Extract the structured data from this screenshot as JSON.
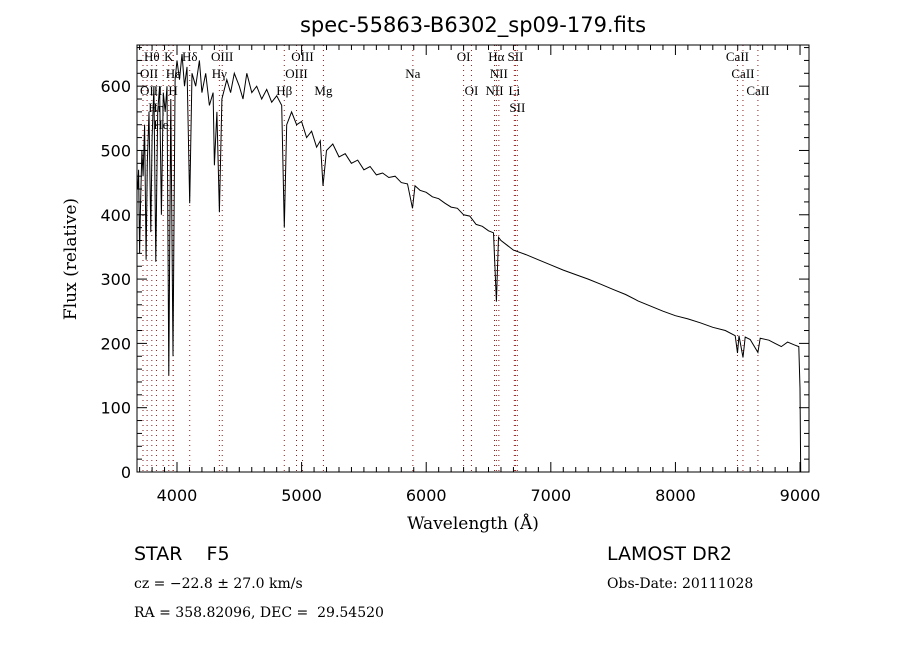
{
  "chart_data": {
    "type": "line",
    "title": "spec-55863-B6302_sp09-179.fits",
    "xlabel": "Wavelength (Å)",
    "ylabel": "Flux (relative)",
    "xlim": [
      3679,
      9072
    ],
    "ylim": [
      0,
      664
    ],
    "xticks": [
      4000,
      5000,
      6000,
      7000,
      8000,
      9000
    ],
    "yticks": [
      0,
      100,
      200,
      300,
      400,
      500,
      600
    ],
    "grid": false,
    "colors": {
      "spectrum": "#000000",
      "line_marker": "#8b1a1a",
      "axes": "#000000"
    },
    "series": [
      {
        "name": "spectrum",
        "points": [
          [
            3685,
            440
          ],
          [
            3692,
            470
          ],
          [
            3700,
            340
          ],
          [
            3708,
            420
          ],
          [
            3718,
            500
          ],
          [
            3728,
            460
          ],
          [
            3740,
            540
          ],
          [
            3752,
            330
          ],
          [
            3762,
            480
          ],
          [
            3775,
            560
          ],
          [
            3790,
            373
          ],
          [
            3800,
            520
          ],
          [
            3815,
            600
          ],
          [
            3830,
            327
          ],
          [
            3845,
            560
          ],
          [
            3860,
            600
          ],
          [
            3875,
            400
          ],
          [
            3890,
            590
          ],
          [
            3905,
            560
          ],
          [
            3920,
            600
          ],
          [
            3934,
            150
          ],
          [
            3950,
            580
          ],
          [
            3968,
            180
          ],
          [
            3985,
            610
          ],
          [
            4000,
            640
          ],
          [
            4020,
            610
          ],
          [
            4040,
            650
          ],
          [
            4060,
            600
          ],
          [
            4080,
            630
          ],
          [
            4102,
            418
          ],
          [
            4120,
            620
          ],
          [
            4150,
            600
          ],
          [
            4180,
            640
          ],
          [
            4200,
            590
          ],
          [
            4230,
            620
          ],
          [
            4260,
            570
          ],
          [
            4290,
            590
          ],
          [
            4300,
            477
          ],
          [
            4320,
            560
          ],
          [
            4340,
            404
          ],
          [
            4360,
            580
          ],
          [
            4400,
            610
          ],
          [
            4430,
            590
          ],
          [
            4460,
            620
          ],
          [
            4500,
            600
          ],
          [
            4530,
            580
          ],
          [
            4560,
            620
          ],
          [
            4600,
            590
          ],
          [
            4640,
            600
          ],
          [
            4680,
            580
          ],
          [
            4720,
            595
          ],
          [
            4760,
            575
          ],
          [
            4800,
            585
          ],
          [
            4840,
            570
          ],
          [
            4861,
            380
          ],
          [
            4880,
            540
          ],
          [
            4920,
            560
          ],
          [
            4960,
            540
          ],
          [
            5000,
            545
          ],
          [
            5040,
            520
          ],
          [
            5080,
            530
          ],
          [
            5120,
            505
          ],
          [
            5150,
            515
          ],
          [
            5172,
            445
          ],
          [
            5200,
            500
          ],
          [
            5250,
            510
          ],
          [
            5300,
            490
          ],
          [
            5350,
            495
          ],
          [
            5400,
            480
          ],
          [
            5450,
            485
          ],
          [
            5500,
            470
          ],
          [
            5550,
            475
          ],
          [
            5600,
            462
          ],
          [
            5650,
            465
          ],
          [
            5700,
            458
          ],
          [
            5750,
            460
          ],
          [
            5800,
            450
          ],
          [
            5850,
            448
          ],
          [
            5890,
            410
          ],
          [
            5910,
            445
          ],
          [
            5950,
            438
          ],
          [
            6000,
            435
          ],
          [
            6050,
            428
          ],
          [
            6100,
            425
          ],
          [
            6150,
            418
          ],
          [
            6200,
            412
          ],
          [
            6250,
            410
          ],
          [
            6300,
            400
          ],
          [
            6350,
            398
          ],
          [
            6400,
            385
          ],
          [
            6450,
            382
          ],
          [
            6500,
            375
          ],
          [
            6540,
            372
          ],
          [
            6563,
            265
          ],
          [
            6580,
            365
          ],
          [
            6600,
            360
          ],
          [
            6700,
            345
          ],
          [
            6800,
            338
          ],
          [
            6900,
            330
          ],
          [
            7000,
            322
          ],
          [
            7100,
            314
          ],
          [
            7200,
            307
          ],
          [
            7300,
            300
          ],
          [
            7400,
            292
          ],
          [
            7500,
            284
          ],
          [
            7600,
            276
          ],
          [
            7700,
            266
          ],
          [
            7800,
            258
          ],
          [
            7900,
            250
          ],
          [
            8000,
            243
          ],
          [
            8100,
            238
          ],
          [
            8200,
            232
          ],
          [
            8300,
            225
          ],
          [
            8400,
            220
          ],
          [
            8480,
            212
          ],
          [
            8498,
            185
          ],
          [
            8510,
            212
          ],
          [
            8542,
            178
          ],
          [
            8560,
            210
          ],
          [
            8600,
            206
          ],
          [
            8662,
            186
          ],
          [
            8680,
            208
          ],
          [
            8750,
            205
          ],
          [
            8800,
            200
          ],
          [
            8850,
            195
          ],
          [
            8900,
            202
          ],
          [
            8950,
            198
          ],
          [
            8990,
            195
          ],
          [
            9000,
            130
          ],
          [
            9005,
            0
          ]
        ]
      }
    ],
    "line_markers": [
      {
        "label": "OII",
        "wl": 3727,
        "row": 2
      },
      {
        "label": "OIII",
        "wl": 3760,
        "row": 3
      },
      {
        "label": "Hθ",
        "wl": 3798,
        "row": 1
      },
      {
        "label": "Hη",
        "wl": 3835,
        "row": 3
      },
      {
        "label": "HeI",
        "wl": 3889,
        "row": 2
      },
      {
        "label": "K",
        "wl": 3934,
        "row": 1
      },
      {
        "label": "H",
        "wl": 3969,
        "row": 3
      },
      {
        "label": "Hε",
        "wl": 3970,
        "row": 2
      },
      {
        "label": "Hδ",
        "wl": 4102,
        "row": 1
      },
      {
        "label": "Hγ",
        "wl": 4340,
        "row": 2
      },
      {
        "label": "OIII",
        "wl": 4363,
        "row": 1
      },
      {
        "label": "Hβ",
        "wl": 4861,
        "row": 3
      },
      {
        "label": "OIII",
        "wl": 4959,
        "row": 2
      },
      {
        "label": "OIII",
        "wl": 5007,
        "row": 1
      },
      {
        "label": "Mg",
        "wl": 5175,
        "row": 3
      },
      {
        "label": "Na",
        "wl": 5893,
        "row": 2
      },
      {
        "label": "OI",
        "wl": 6300,
        "row": 1
      },
      {
        "label": "OI",
        "wl": 6363,
        "row": 3
      },
      {
        "label": "NII",
        "wl": 6548,
        "row": 3
      },
      {
        "label": "Hα",
        "wl": 6563,
        "row": 1
      },
      {
        "label": "NII",
        "wl": 6583,
        "row": 2
      },
      {
        "label": "Li",
        "wl": 6707,
        "row": 2
      },
      {
        "label": "SII",
        "wl": 6716,
        "row": 1
      },
      {
        "label": "SII",
        "wl": 6731,
        "row": 3
      },
      {
        "label": "CaII",
        "wl": 8498,
        "row": 1
      },
      {
        "label": "CaII",
        "wl": 8542,
        "row": 2
      },
      {
        "label": "CaII",
        "wl": 8662,
        "row": 3
      }
    ]
  },
  "info": {
    "class": "STAR    F5",
    "survey": "LAMOST DR2",
    "redshift": "cz = −22.8 ± 27.0 km/s",
    "obs_date": "Obs-Date: 20111028",
    "coords": "RA = 358.82096, DEC =  29.54520"
  }
}
